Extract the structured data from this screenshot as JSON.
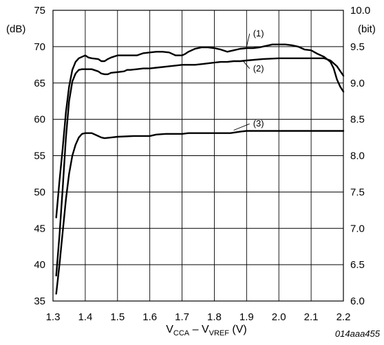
{
  "chart_data": {
    "type": "line",
    "code": "014aaa455",
    "xlabel": {
      "v1": "V",
      "s1": "CCA",
      "dash": " – ",
      "v2": "V",
      "s2": "VREF",
      "unit": " (V)"
    },
    "y_left_unit": "(dB)",
    "y_right_unit": "(bit)",
    "xlim": [
      1.3,
      2.2
    ],
    "ylim_left": [
      35,
      75
    ],
    "ylim_right": [
      6.0,
      10.0
    ],
    "x_ticks": [
      "1.3",
      "1.4",
      "1.5",
      "1.6",
      "1.7",
      "1.8",
      "1.9",
      "2.0",
      "2.1",
      "2.2"
    ],
    "y_left_ticks": [
      "35",
      "40",
      "45",
      "50",
      "55",
      "60",
      "65",
      "70",
      "75"
    ],
    "y_right_ticks": [
      "6.0",
      "6.5",
      "7.0",
      "7.5",
      "8.0",
      "8.5",
      "9.0",
      "9.5",
      "10.0"
    ],
    "grid": true,
    "series": [
      {
        "name": "(1)",
        "label_at": [
          1.92,
          71.4
        ],
        "line_from": [
          1.9,
          70.0
        ],
        "x": [
          1.31,
          1.32,
          1.33,
          1.34,
          1.35,
          1.36,
          1.37,
          1.38,
          1.39,
          1.4,
          1.41,
          1.42,
          1.44,
          1.45,
          1.46,
          1.47,
          1.48,
          1.5,
          1.52,
          1.54,
          1.56,
          1.58,
          1.6,
          1.62,
          1.64,
          1.66,
          1.68,
          1.69,
          1.7,
          1.71,
          1.72,
          1.74,
          1.76,
          1.78,
          1.8,
          1.82,
          1.84,
          1.86,
          1.88,
          1.9,
          1.92,
          1.94,
          1.96,
          1.98,
          2.0,
          2.02,
          2.04,
          2.06,
          2.08,
          2.1,
          2.12,
          2.14,
          2.16,
          2.17,
          2.18,
          2.19,
          2.2
        ],
        "y": [
          46.5,
          51.5,
          56.0,
          61.0,
          64.5,
          66.8,
          67.9,
          68.4,
          68.6,
          68.8,
          68.5,
          68.4,
          68.3,
          68.0,
          68.0,
          68.3,
          68.5,
          68.8,
          68.8,
          68.8,
          68.8,
          69.1,
          69.2,
          69.3,
          69.3,
          69.2,
          68.8,
          68.8,
          68.8,
          69.0,
          69.3,
          69.7,
          69.9,
          69.9,
          69.8,
          69.6,
          69.3,
          69.5,
          69.7,
          69.8,
          69.8,
          69.9,
          70.1,
          70.3,
          70.3,
          70.3,
          70.2,
          70.0,
          69.6,
          69.5,
          69.0,
          68.6,
          67.9,
          67.0,
          65.5,
          64.5,
          63.8
        ]
      },
      {
        "name": "(2)",
        "label_at": [
          1.92,
          66.6
        ],
        "line_from": [
          1.89,
          68.0
        ],
        "x": [
          1.31,
          1.32,
          1.33,
          1.34,
          1.35,
          1.36,
          1.37,
          1.38,
          1.39,
          1.4,
          1.42,
          1.44,
          1.45,
          1.46,
          1.47,
          1.48,
          1.5,
          1.52,
          1.53,
          1.54,
          1.56,
          1.58,
          1.6,
          1.62,
          1.64,
          1.66,
          1.68,
          1.7,
          1.72,
          1.74,
          1.76,
          1.78,
          1.8,
          1.82,
          1.84,
          1.86,
          1.88,
          1.9,
          1.95,
          2.0,
          2.05,
          2.1,
          2.14,
          2.16,
          2.18,
          2.2
        ],
        "y": [
          38.5,
          44.0,
          50.5,
          57.5,
          62.5,
          65.2,
          66.3,
          66.8,
          66.9,
          66.9,
          66.9,
          66.6,
          66.3,
          66.2,
          66.2,
          66.4,
          66.5,
          66.6,
          66.8,
          66.8,
          66.9,
          67.0,
          67.0,
          67.1,
          67.2,
          67.3,
          67.4,
          67.5,
          67.5,
          67.5,
          67.6,
          67.7,
          67.8,
          67.9,
          67.9,
          68.0,
          68.0,
          68.1,
          68.3,
          68.4,
          68.4,
          68.4,
          68.4,
          68.1,
          67.3,
          66.0
        ]
      },
      {
        "name": "(3)",
        "label_at": [
          1.92,
          59.0
        ],
        "line_from": [
          1.86,
          58.5
        ],
        "x": [
          1.31,
          1.32,
          1.33,
          1.34,
          1.35,
          1.36,
          1.37,
          1.38,
          1.39,
          1.4,
          1.42,
          1.44,
          1.45,
          1.46,
          1.48,
          1.5,
          1.55,
          1.6,
          1.62,
          1.65,
          1.7,
          1.72,
          1.75,
          1.8,
          1.85,
          1.88,
          1.9,
          2.0,
          2.1,
          2.2
        ],
        "y": [
          36.0,
          40.0,
          44.5,
          49.0,
          52.5,
          55.0,
          56.5,
          57.5,
          58.0,
          58.1,
          58.1,
          57.7,
          57.5,
          57.4,
          57.5,
          57.6,
          57.7,
          57.7,
          57.9,
          58.0,
          58.0,
          58.1,
          58.1,
          58.1,
          58.1,
          58.3,
          58.4,
          58.4,
          58.4,
          58.4
        ]
      }
    ]
  }
}
